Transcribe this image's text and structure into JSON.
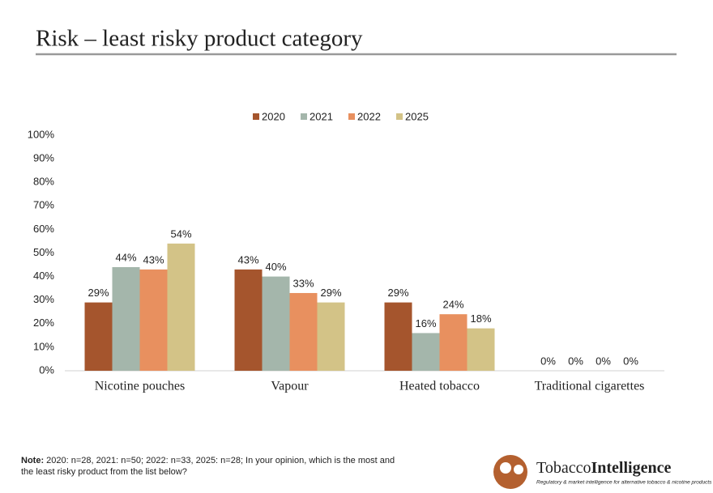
{
  "chart_data": {
    "type": "bar",
    "title": "Risk – least risky product category",
    "categories": [
      "Nicotine pouches",
      "Vapour",
      "Heated tobacco",
      "Traditional cigarettes"
    ],
    "series": [
      {
        "name": "2020",
        "color": "#a5552d",
        "values": [
          29,
          43,
          29,
          0
        ],
        "value_labels": [
          "29%",
          "43%",
          "29%",
          "0%"
        ]
      },
      {
        "name": "2021",
        "color": "#a4b6ab",
        "values": [
          44,
          40,
          16,
          0
        ],
        "value_labels": [
          "44%",
          "40%",
          "16%",
          "0%"
        ]
      },
      {
        "name": "2022",
        "color": "#e8905f",
        "values": [
          43,
          33,
          24,
          0
        ],
        "value_labels": [
          "43%",
          "33%",
          "24%",
          "0%"
        ]
      },
      {
        "name": "2025",
        "color": "#d3c387",
        "values": [
          54,
          29,
          18,
          0
        ],
        "value_labels": [
          "54%",
          "29%",
          "18%",
          "0%"
        ]
      }
    ],
    "ylim": [
      0,
      100
    ],
    "yticks": [
      {
        "value": 0,
        "label": "0%"
      },
      {
        "value": 10,
        "label": "10%"
      },
      {
        "value": 20,
        "label": "20%"
      },
      {
        "value": 30,
        "label": "30%"
      },
      {
        "value": 40,
        "label": "40%"
      },
      {
        "value": 50,
        "label": "50%"
      },
      {
        "value": 60,
        "label": "60%"
      },
      {
        "value": 70,
        "label": "70%"
      },
      {
        "value": 80,
        "label": "80%"
      },
      {
        "value": 90,
        "label": "90%"
      },
      {
        "value": 100,
        "label": "100%"
      }
    ],
    "grid": false,
    "legend": "top"
  },
  "footer": {
    "note_label": "Note:",
    "note_text": "2020: n=28, 2021: n=50; 2022: n=33, 2025: n=28; In your opinion, which is the most and the least risky product from the list below?",
    "logo_part1": "Tobacco",
    "logo_part2": "Intelligence",
    "tagline": "Regulatory & market intelligence for alternative tobacco & nicotine products"
  }
}
